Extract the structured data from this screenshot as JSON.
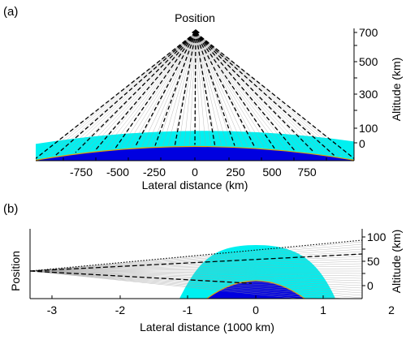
{
  "panels": [
    {
      "id": "a",
      "label": "(a)",
      "position_label": "Position",
      "x_axis": {
        "label": "Lateral distance (km)",
        "ticks": [
          "-750",
          "-500",
          "-250",
          "0",
          "250",
          "500",
          "750"
        ],
        "range": [
          -990,
          990
        ]
      },
      "alt_axis": {
        "label": "Altitude (km)",
        "ticks": [
          "700",
          "500",
          "300",
          "100",
          "0"
        ]
      }
    },
    {
      "id": "b",
      "label": "(b)",
      "position_label": "Position",
      "x_axis": {
        "label": "Lateral distance (1000 km)",
        "ticks": [
          "-3",
          "-2",
          "-1",
          "0",
          "1",
          "2"
        ],
        "range": [
          -3.3,
          1.6
        ]
      },
      "alt_axis": {
        "label": "Altitude (km)",
        "ticks": [
          "100",
          "50",
          "0"
        ]
      }
    }
  ],
  "colors": {
    "earth": "#0000e0",
    "atmosphere": "#00f0f0",
    "surface_line": "#e8a000",
    "sight_lines": "#000000",
    "fine_lines": "#a0a0a0"
  }
}
